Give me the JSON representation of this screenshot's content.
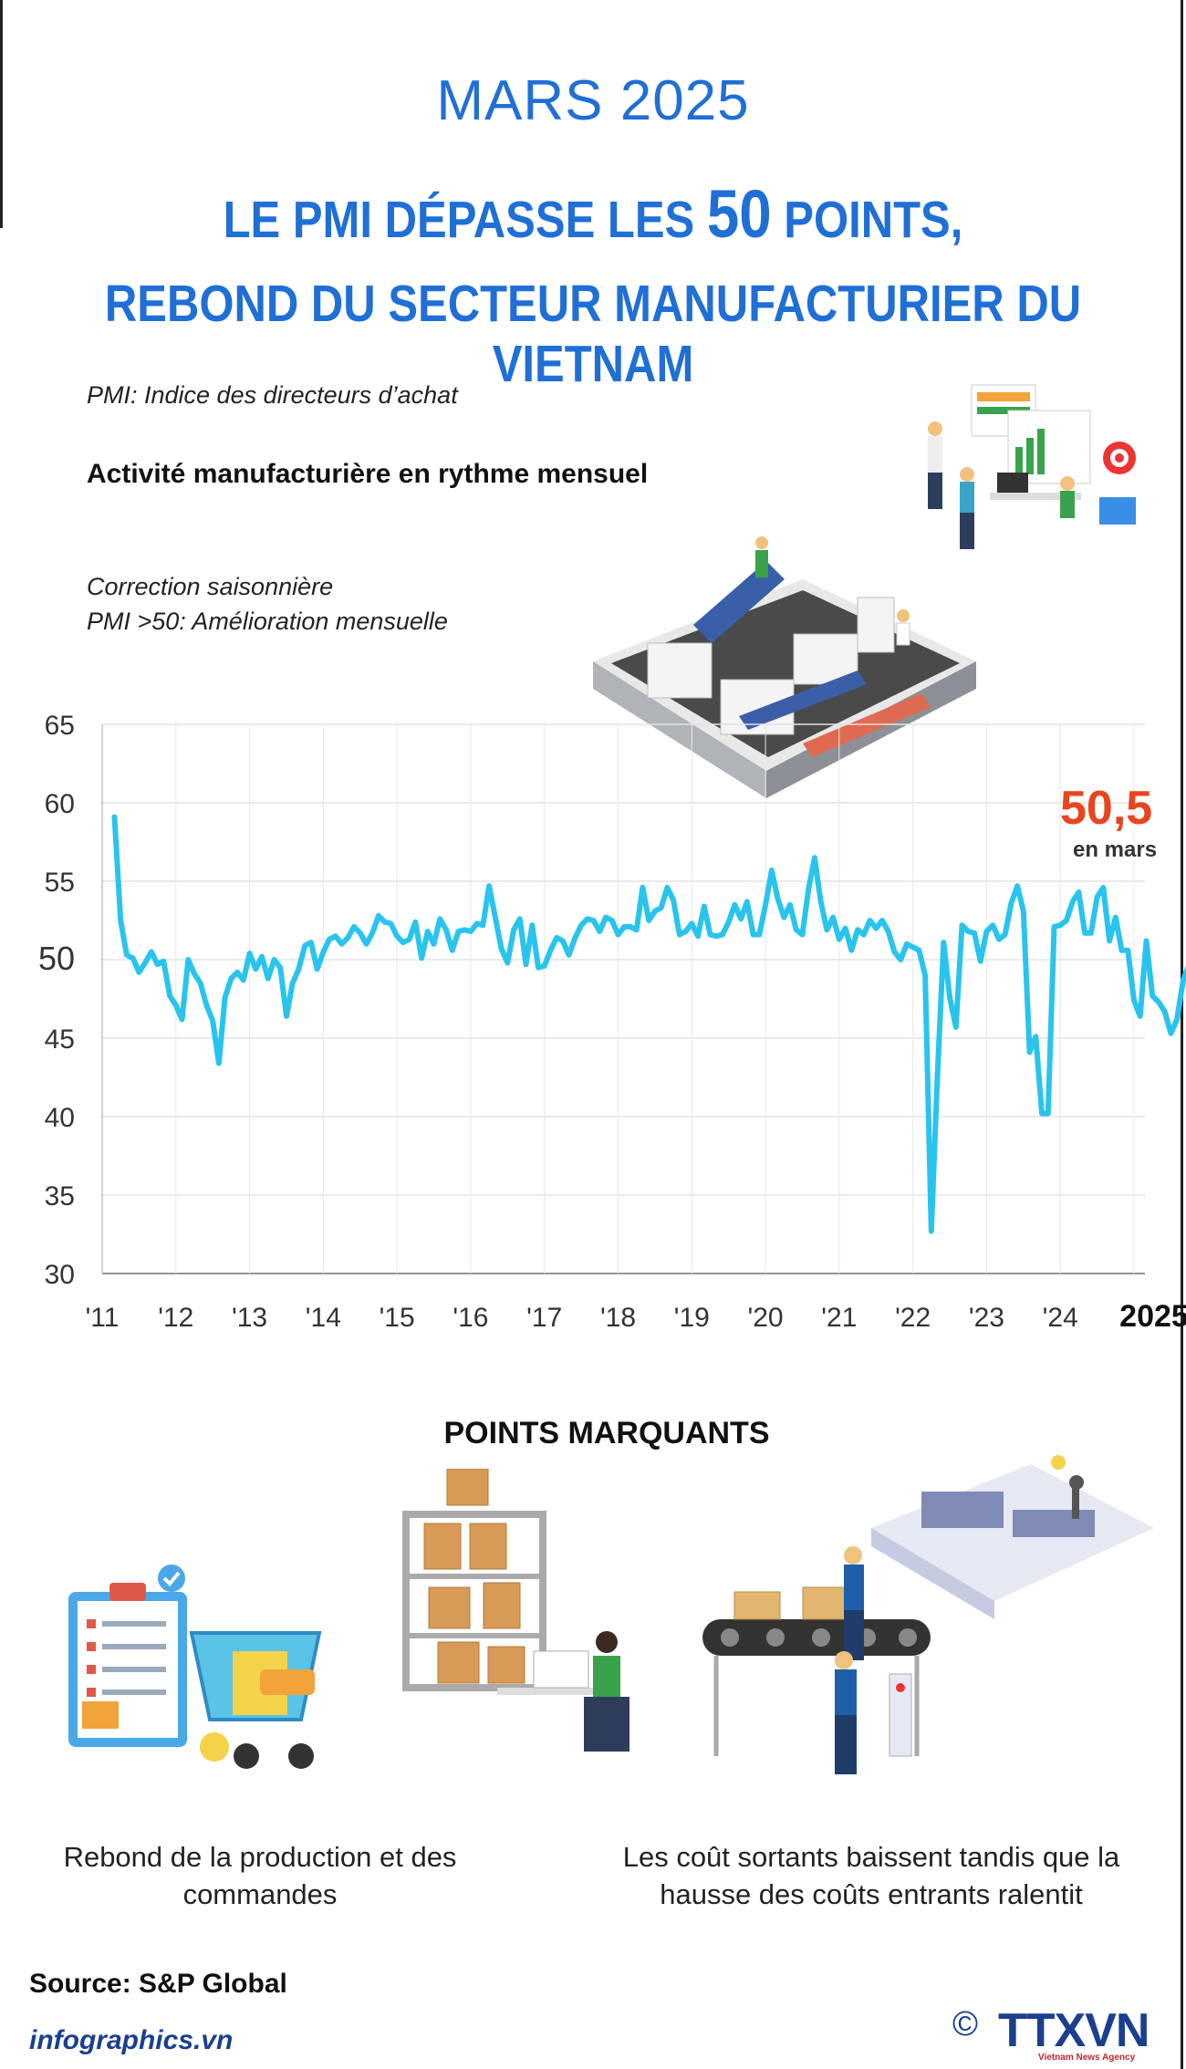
{
  "header": {
    "date_title": "MARS 2025",
    "headline_line1_a": "LE PMI DÉPASSE LES ",
    "headline_line1_number": "50",
    "headline_line1_b": " POINTS,",
    "headline_line2": "REBOND DU SECTEUR MANUFACTURIER DU  VIETNAM"
  },
  "notes": {
    "pmi_definition": "PMI: Indice des directeurs d’achat",
    "chart_subtitle": "Activité manufacturière en rythme mensuel",
    "correction": "Correction saisonnière",
    "threshold": "PMI >50: Amélioration mensuelle"
  },
  "chart_data": {
    "type": "line",
    "title": "Activité manufacturière en rythme mensuel",
    "xlabel": "",
    "ylabel": "",
    "ylim": [
      30,
      65
    ],
    "yticks": [
      "65",
      "60",
      "55",
      "50",
      "45",
      "40",
      "35",
      "30"
    ],
    "yticks_values": [
      65,
      60,
      55,
      50,
      45,
      40,
      35,
      30
    ],
    "xticks": [
      "'11",
      "'12",
      "'13",
      "'14",
      "'15",
      "'16",
      "'17",
      "'18",
      "'19",
      "'20",
      "'21",
      "'22",
      "'23",
      "'24",
      "2025"
    ],
    "xticks_years": [
      2011,
      2012,
      2013,
      2014,
      2015,
      2016,
      2017,
      2018,
      2019,
      2020,
      2021,
      2022,
      2023,
      2024,
      2025
    ],
    "grid": true,
    "start_month": "2011-03",
    "series": [
      {
        "name": "PMI",
        "color": "#29c4ee",
        "values": [
          59.1,
          52.5,
          50.3,
          50.1,
          49.2,
          49.8,
          50.5,
          49.7,
          49.9,
          47.7,
          47.1,
          46.2,
          50.0,
          49.1,
          48.5,
          47.1,
          46.1,
          43.4,
          47.6,
          48.8,
          49.2,
          48.7,
          50.4,
          49.4,
          50.2,
          48.8,
          50.0,
          49.5,
          46.4,
          48.5,
          49.4,
          50.9,
          51.1,
          49.4,
          50.5,
          51.3,
          51.5,
          51.0,
          51.4,
          52.1,
          51.7,
          51.0,
          51.7,
          52.8,
          52.4,
          52.3,
          51.5,
          51.1,
          51.3,
          52.4,
          50.1,
          51.8,
          51.0,
          52.6,
          51.9,
          50.6,
          51.8,
          51.9,
          51.8,
          52.3,
          52.2,
          54.7,
          52.7,
          50.7,
          49.8,
          51.9,
          52.6,
          49.7,
          52.2,
          49.5,
          49.6,
          50.6,
          51.4,
          51.2,
          50.3,
          51.4,
          52.2,
          52.6,
          52.5,
          51.8,
          52.7,
          52.5,
          51.6,
          52.1,
          52.1,
          51.9,
          54.6,
          52.5,
          53.1,
          53.3,
          54.6,
          53.8,
          51.6,
          51.8,
          52.3,
          51.5,
          53.4,
          51.6,
          51.5,
          51.6,
          52.4,
          53.5,
          52.6,
          53.7,
          51.6,
          51.6,
          53.5,
          55.7,
          53.9,
          52.7,
          53.5,
          51.9,
          51.6,
          54.5,
          56.5,
          53.7,
          51.9,
          52.7,
          51.3,
          52.0,
          50.6,
          51.9,
          51.6,
          52.5,
          52.0,
          52.5,
          51.8,
          50.5,
          50.0,
          51.0,
          50.8,
          50.6,
          49.0,
          32.7,
          42.7,
          51.1,
          47.6,
          45.7,
          52.2,
          51.8,
          51.7,
          49.9,
          51.8,
          52.2,
          51.3,
          51.6,
          53.6,
          54.7,
          53.1,
          44.1,
          45.1,
          40.2,
          40.2,
          52.1,
          52.2,
          52.5,
          53.7,
          54.3,
          51.7,
          51.7,
          54.0,
          54.6,
          51.2,
          52.7,
          50.6,
          50.6,
          47.4,
          46.4,
          51.2,
          47.7,
          47.3,
          46.7,
          45.3,
          46.2,
          48.7,
          49.7,
          49.6,
          49.4,
          47.3,
          48.9,
          50.3,
          50.4,
          49.9,
          50.3,
          54.7,
          54.7,
          54.7,
          52.4,
          47.3,
          51.2,
          50.8,
          49.8,
          48.9,
          49.2,
          50.5
        ]
      }
    ],
    "annotation": {
      "value": "50,5",
      "label": "en mars"
    }
  },
  "highlights": {
    "title": "POINTS MARQUANTS",
    "item1": "Rebond de la production et des commandes",
    "item2": "Les coût sortants baissent tandis que la hausse des coûts entrants ralentit"
  },
  "footer": {
    "source": "Source: S&P Global",
    "site": "infographics.vn",
    "copyright": "©",
    "brand": "TTXVN",
    "brand_sub": "Vietnam News Agency"
  },
  "colors": {
    "title_blue": "#1f6fd6",
    "line": "#29c4ee",
    "highlight_point": "#e8451e",
    "footer_blue": "#1a3f8f"
  }
}
